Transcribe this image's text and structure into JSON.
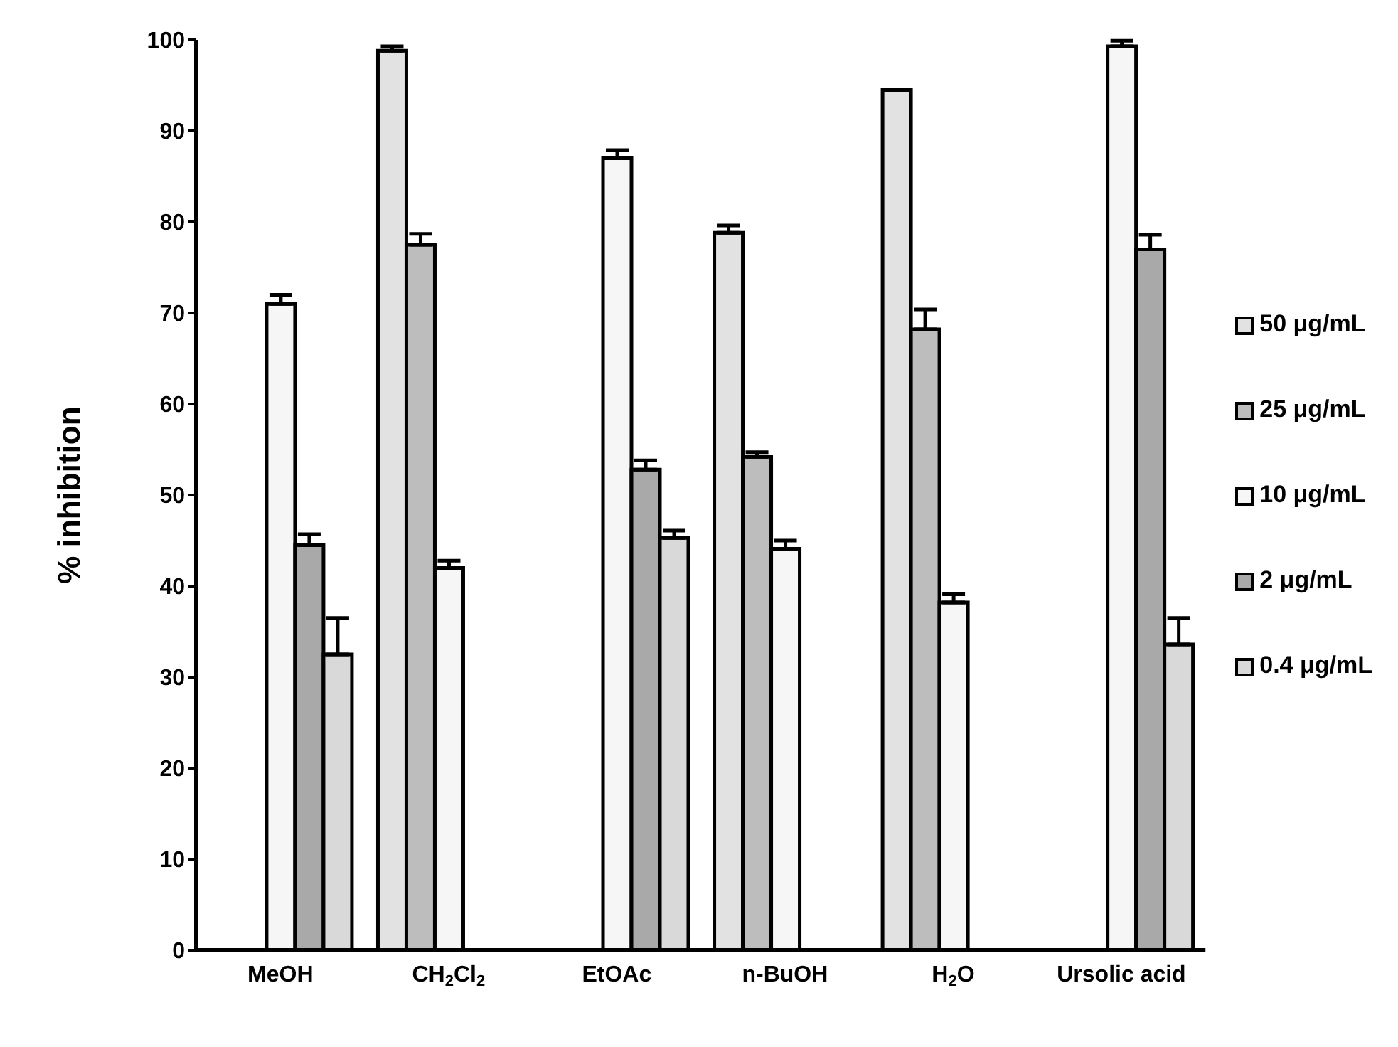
{
  "chart_data": {
    "type": "bar",
    "ylabel": "% inhibition",
    "categories": [
      "MeOH",
      "CH$_{2}$Cl$_{2}$",
      "EtOAc",
      "n-BuOH",
      "H$_{2}$O",
      "Ursolic acid"
    ],
    "series": [
      {
        "name": "50 μg/mL",
        "color": "#e2e2e2",
        "values": [
          null,
          98.8,
          null,
          78.8,
          94.5,
          null
        ],
        "errors": [
          null,
          [
            98.8,
            99.3
          ],
          null,
          [
            78.8,
            79.6
          ],
          null,
          null
        ]
      },
      {
        "name": "25 μg/mL",
        "color": "#bdbdbd",
        "values": [
          null,
          77.5,
          null,
          54.2,
          68.2,
          null
        ],
        "errors": [
          null,
          [
            77.5,
            78.7
          ],
          null,
          [
            54.2,
            54.7
          ],
          [
            68.2,
            70.4
          ],
          null
        ]
      },
      {
        "name": "10 μg/mL",
        "color": "#f6f6f6",
        "values": [
          71,
          42,
          87,
          44.1,
          38.2,
          99.3
        ],
        "errors": [
          [
            71,
            72
          ],
          [
            42,
            42.8
          ],
          [
            87,
            87.9
          ],
          [
            44.1,
            45
          ],
          [
            38.2,
            39.1
          ],
          [
            99.3,
            99.9
          ]
        ]
      },
      {
        "name": "2 μg/mL",
        "color": "#a9a9a9",
        "values": [
          44.5,
          null,
          52.8,
          null,
          null,
          77
        ],
        "errors": [
          [
            44.5,
            45.7
          ],
          null,
          [
            52.8,
            53.8
          ],
          null,
          null,
          [
            77,
            78.6
          ]
        ]
      },
      {
        "name": "0.4 μg/mL",
        "color": "#d9d9d9",
        "values": [
          32.5,
          null,
          45.3,
          null,
          null,
          33.6
        ],
        "errors": [
          [
            32.5,
            36.5
          ],
          null,
          [
            45.3,
            46.1
          ],
          null,
          null,
          [
            33.6,
            36.5
          ]
        ]
      }
    ],
    "ylim": [
      0,
      100
    ],
    "yticks": [
      0,
      10,
      20,
      30,
      40,
      50,
      60,
      70,
      80,
      90,
      100
    ],
    "grid": false,
    "legend": "right"
  }
}
